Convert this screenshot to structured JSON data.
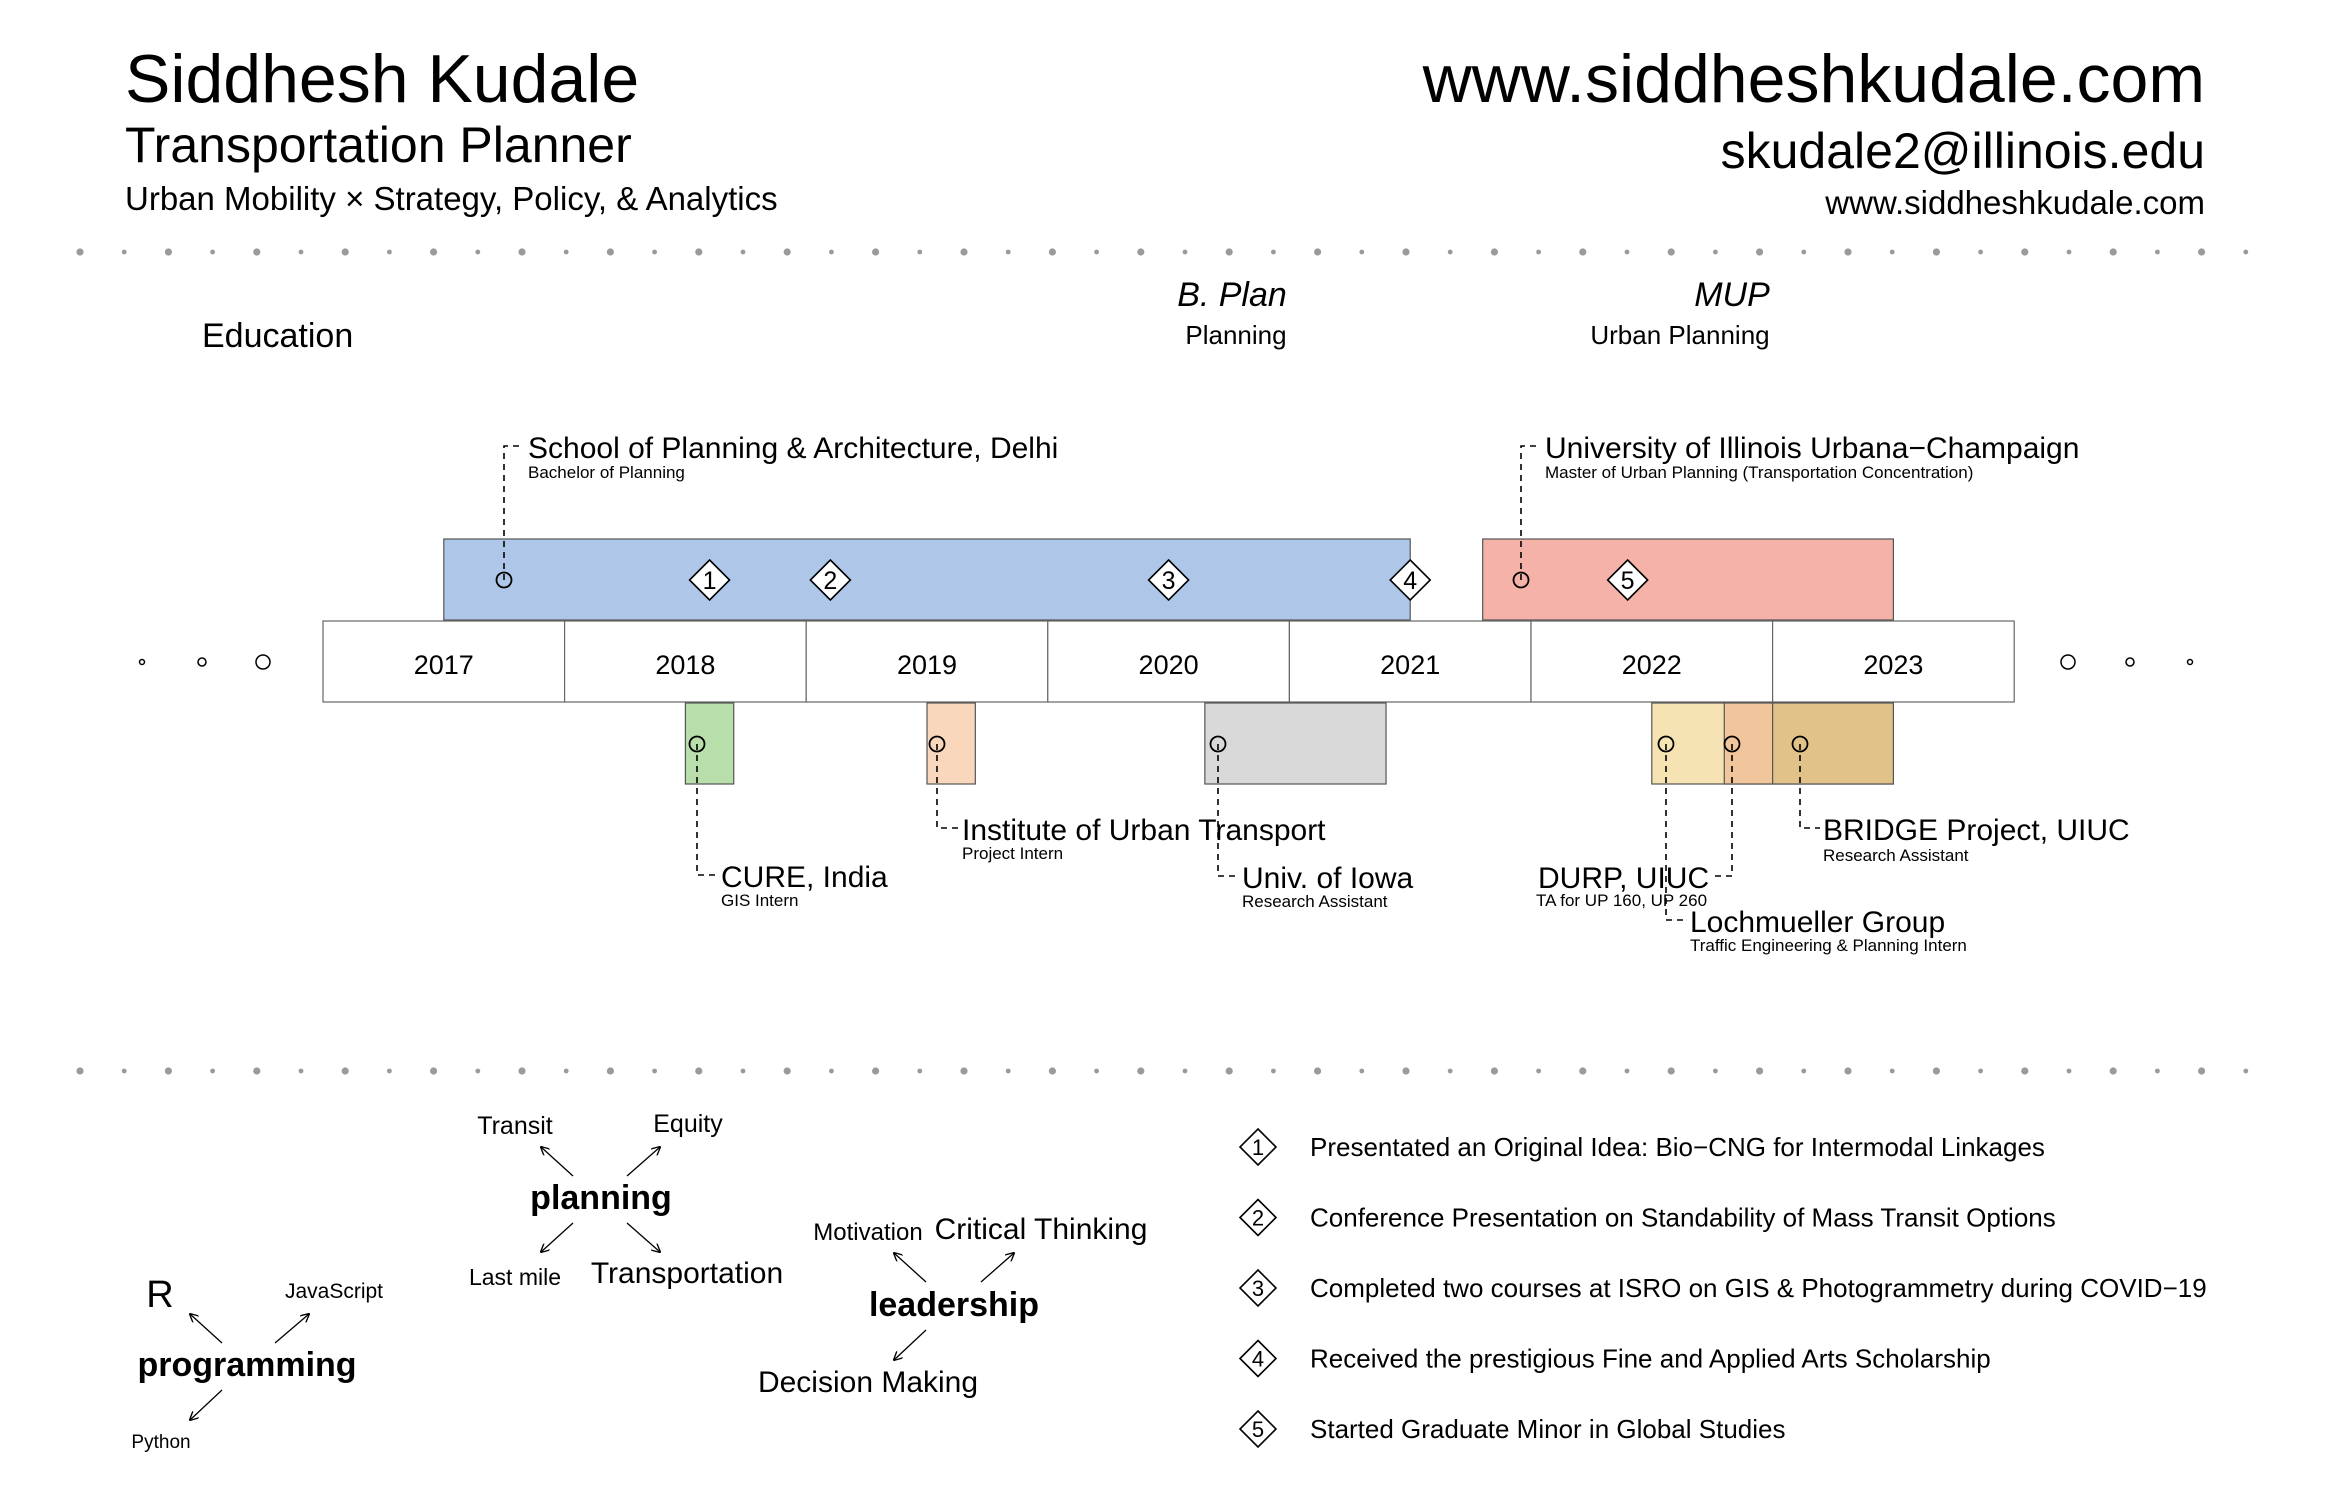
{
  "header": {
    "name": "Siddhesh Kudale",
    "role": "Transportation Planner",
    "tagline": "Urban Mobility × Strategy, Policy, & Analytics",
    "website_large": "www.siddheshkudale.com",
    "email": "skudale2@illinois.edu",
    "website_small": "www.siddheshkudale.com"
  },
  "education": {
    "label": "Education",
    "degrees": [
      {
        "degree": "B. Plan",
        "field": "Planning"
      },
      {
        "degree": "MUP",
        "field": "Urban Planning"
      }
    ],
    "schools": [
      {
        "name": "School of Planning & Architecture, Delhi",
        "detail": "Bachelor of Planning",
        "start": 2017.0,
        "end": 2021.0,
        "color": "#aec7e8"
      },
      {
        "name": "University of Illinois Urbana−Champaign",
        "detail": "Master of Urban Planning (Transportation Concentration)",
        "start": 2021.3,
        "end": 2023.0,
        "color": "#f4b2a8"
      }
    ],
    "milestones": [
      {
        "num": "1",
        "year": 2018.1
      },
      {
        "num": "2",
        "year": 2018.6
      },
      {
        "num": "3",
        "year": 2020.0
      },
      {
        "num": "4",
        "year": 2021.0
      },
      {
        "num": "5",
        "year": 2021.9
      }
    ]
  },
  "timeline": {
    "years": [
      "2017",
      "2018",
      "2019",
      "2020",
      "2021",
      "2022",
      "2023"
    ]
  },
  "experience": [
    {
      "org": "CURE, India",
      "role": "GIS Intern",
      "start": 2018.0,
      "end": 2018.2,
      "color": "#b8deac"
    },
    {
      "org": "Institute of Urban Transport",
      "role": "Project Intern",
      "start": 2019.0,
      "end": 2019.2,
      "color": "#f8d7bd"
    },
    {
      "org": "Univ. of Iowa",
      "role": "Research Assistant",
      "start": 2020.15,
      "end": 2020.9,
      "color": "#d9d9d9"
    },
    {
      "org": "DURP, UIUC",
      "role": "TA for UP 160, UP 260",
      "start": 2022.0,
      "end": 2023.0,
      "color": "#f5e3b3"
    },
    {
      "org": "Lochmueller Group",
      "role": "Traffic Engineering & Planning Intern",
      "start": 2022.3,
      "end": 2022.5,
      "color": "#f2c69c"
    },
    {
      "org": "BRIDGE Project, UIUC",
      "role": "Research Assistant",
      "start": 2022.5,
      "end": 2023.0,
      "color": "#e1c389"
    }
  ],
  "skills": {
    "programming": {
      "title": "programming",
      "items": [
        "R",
        "JavaScript",
        "Python"
      ]
    },
    "planning": {
      "title": "planning",
      "items": [
        "Transit",
        "Equity",
        "Last mile",
        "Transportation"
      ]
    },
    "leadership": {
      "title": "leadership",
      "items": [
        "Motivation",
        "Critical Thinking",
        "Decision Making"
      ]
    }
  },
  "achievements": [
    {
      "num": "1",
      "text": "Presentated an Original Idea: Bio−CNG for Intermodal Linkages"
    },
    {
      "num": "2",
      "text": "Conference Presentation on Standability of Mass Transit Options"
    },
    {
      "num": "3",
      "text": "Completed two courses at ISRO on GIS & Photogrammetry during COVID−19"
    },
    {
      "num": "4",
      "text": "Received the prestigious Fine and Applied Arts Scholarship"
    },
    {
      "num": "5",
      "text": "Started Graduate Minor in Global Studies"
    }
  ]
}
